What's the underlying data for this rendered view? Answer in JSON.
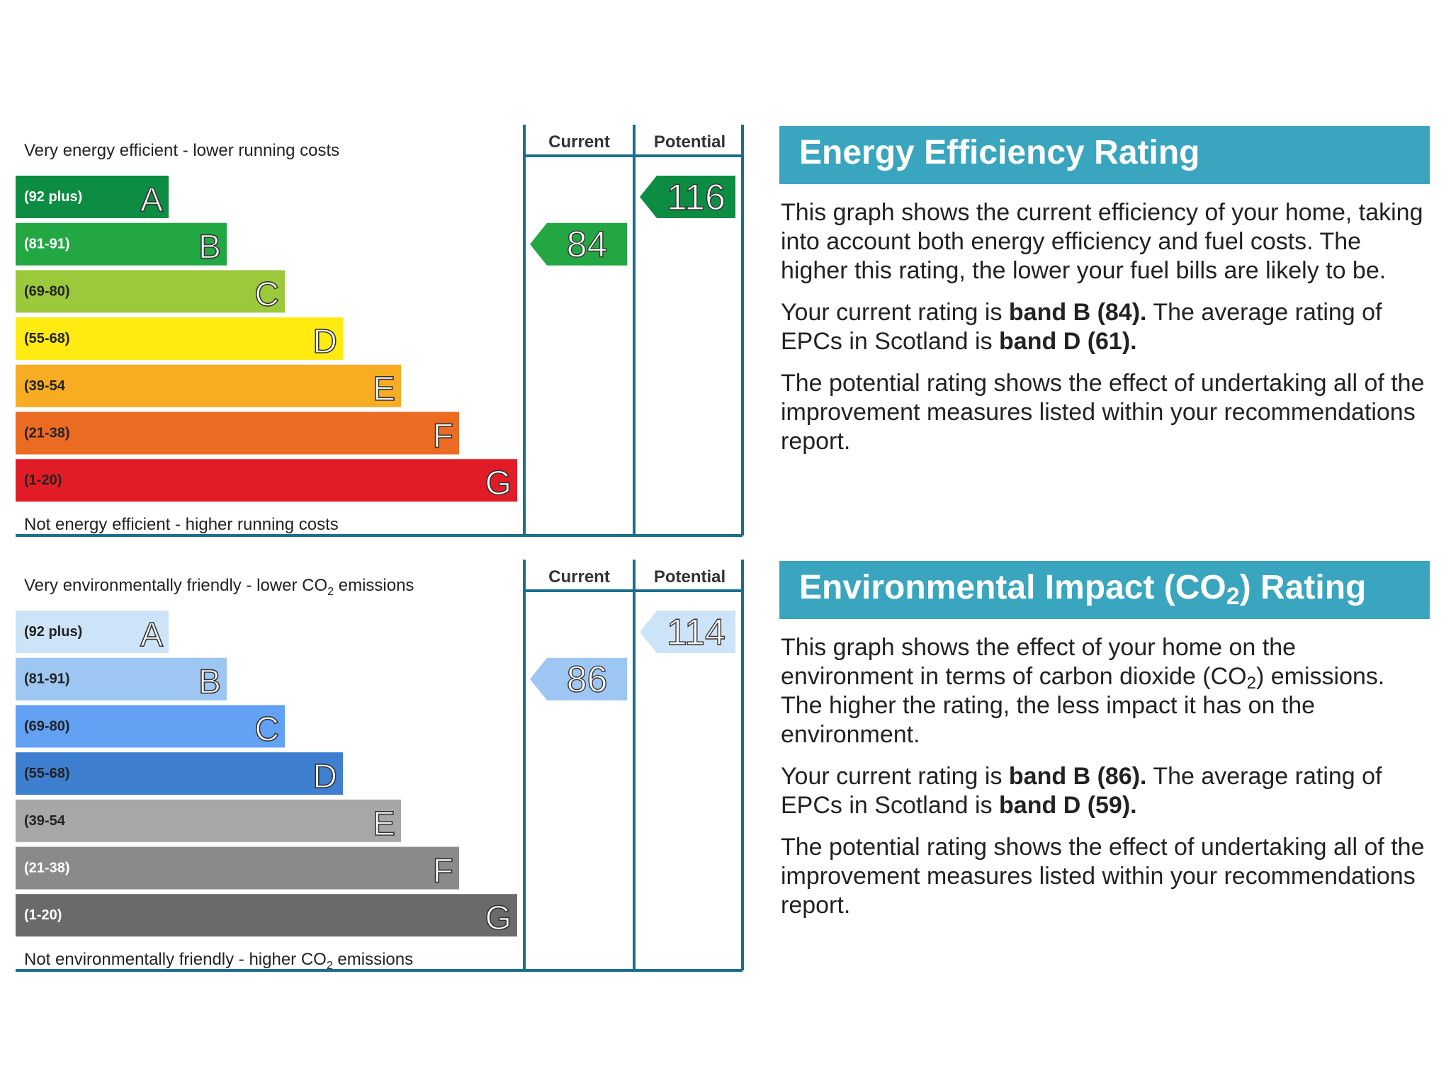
{
  "chart_data": [
    {
      "type": "bar",
      "title": "Energy Efficiency Rating",
      "top_caption": "Very energy efficient - lower running costs",
      "bottom_caption": "Not energy efficient - higher running costs",
      "columns": [
        "Current",
        "Potential"
      ],
      "bands": [
        {
          "letter": "A",
          "range": "(92 plus)",
          "color": "#0c8d43",
          "text_color": "#ffffff"
        },
        {
          "letter": "B",
          "range": "(81-91)",
          "color": "#23a743",
          "text_color": "#ffffff"
        },
        {
          "letter": "C",
          "range": "(69-80)",
          "color": "#9bc93b",
          "text_color": "#222222"
        },
        {
          "letter": "D",
          "range": "(55-68)",
          "color": "#ffeb12",
          "text_color": "#222222"
        },
        {
          "letter": "E",
          "range": "(39-54",
          "color": "#f7ac22",
          "text_color": "#222222"
        },
        {
          "letter": "F",
          "range": "(21-38)",
          "color": "#ec6b23",
          "text_color": "#222222"
        },
        {
          "letter": "G",
          "range": "(1-20)",
          "color": "#e21c26",
          "text_color": "#222222"
        }
      ],
      "current": {
        "value": 84,
        "band": "B",
        "color": "#23a743"
      },
      "potential": {
        "value": 116,
        "band": "A",
        "color": "#0c8d43"
      }
    },
    {
      "type": "bar",
      "title": "Environmental Impact (CO2) Rating",
      "top_caption": {
        "before": "Very environmentally friendly - lower CO",
        "sub": "2",
        "after": " emissions"
      },
      "bottom_caption": {
        "before": "Not environmentally friendly - higher CO",
        "sub": "2",
        "after": " emissions"
      },
      "columns": [
        "Current",
        "Potential"
      ],
      "bands": [
        {
          "letter": "A",
          "range": "(92 plus)",
          "color": "#cde3f7",
          "text_color": "#222222"
        },
        {
          "letter": "B",
          "range": "(81-91)",
          "color": "#9dc7f2",
          "text_color": "#222222"
        },
        {
          "letter": "C",
          "range": "(69-80)",
          "color": "#62a1f4",
          "text_color": "#222222"
        },
        {
          "letter": "D",
          "range": "(55-68)",
          "color": "#3f7fd0",
          "text_color": "#222222"
        },
        {
          "letter": "E",
          "range": "(39-54",
          "color": "#a7a7a7",
          "text_color": "#222222"
        },
        {
          "letter": "F",
          "range": "(21-38)",
          "color": "#8a8a8a",
          "text_color": "#ffffff"
        },
        {
          "letter": "G",
          "range": "(1-20)",
          "color": "#6a6a6a",
          "text_color": "#ffffff"
        }
      ],
      "current": {
        "value": 86,
        "band": "B",
        "color": "#9dc7f2"
      },
      "potential": {
        "value": 114,
        "band": "A",
        "color": "#cde3f7"
      }
    }
  ],
  "panels": {
    "eer": {
      "title": "Energy Efficiency Rating",
      "p1": "This graph shows the current efficiency of your home, taking into account both energy efficiency and fuel costs. The higher this rating, the lower your fuel bills are likely to be.",
      "p2_a": "Your current rating is ",
      "p2_b": "band B (84).",
      "p2_c": " The average rating of EPCs in Scotland is ",
      "p2_d": "band D (61).",
      "p3": "The potential rating shows the effect of undertaking all of the improvement measures listed within your recommendations report."
    },
    "ei": {
      "title_a": "Environmental Impact (CO",
      "title_sub": "2",
      "title_b": ") Rating",
      "p1_a": "This graph shows the effect of your home on the environment in terms of carbon dioxide (CO",
      "p1_sub": "2",
      "p1_b": ") emissions. The higher the rating, the less impact it has on the environment.",
      "p2_a": "Your current rating is ",
      "p2_b": "band B (86).",
      "p2_c": " The average rating of EPCs in Scotland is ",
      "p2_d": "band D (59).",
      "p3": "The potential rating shows the effect of undertaking all of the improvement measures listed within your recommendations report."
    }
  },
  "colors": {
    "frame": "#1b6f8a",
    "panel_header": "#3aa5be"
  }
}
